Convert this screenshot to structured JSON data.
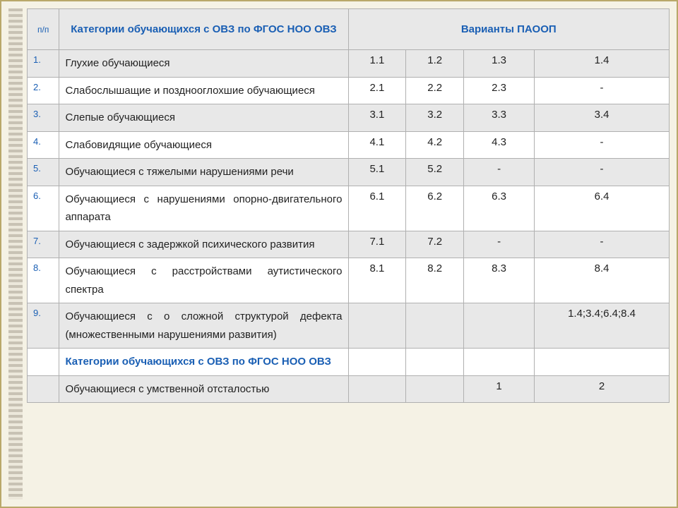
{
  "colors": {
    "page_bg": "#f5f2e5",
    "border": "#b9a86a",
    "cell_border": "#b0b0b0",
    "header_bg": "#e8e8e8",
    "shade_bg": "#e8e8e8",
    "header_text": "#1a5fb4",
    "num_text": "#1a5fb4",
    "body_text": "#222222"
  },
  "fonts": {
    "body_family": "Arial",
    "header_size_pt": 15,
    "body_size_pt": 15,
    "num_size_pt": 13
  },
  "layout": {
    "col_widths_pct": [
      5,
      45,
      9,
      9,
      11,
      21
    ]
  },
  "headers": {
    "num": "п/п",
    "category": "Категории обучающихся с ОВЗ по ФГОС НОО ОВЗ",
    "variants": "Варианты ПАООП"
  },
  "rows": [
    {
      "num": "1.",
      "category": "Глухие обучающиеся",
      "v1": "1.1",
      "v2": "1.2",
      "v3": "1.3",
      "v4": "1.4",
      "shade": true
    },
    {
      "num": "2.",
      "category": "Слабослышащие и позднооглохшие обучающиеся",
      "v1": "2.1",
      "v2": "2.2",
      "v3": "2.3",
      "v4": "-",
      "shade": false
    },
    {
      "num": "3.",
      "category": "Слепые обучающиеся",
      "v1": "3.1",
      "v2": "3.2",
      "v3": "3.3",
      "v4": "3.4",
      "shade": true
    },
    {
      "num": "4.",
      "category": "Слабовидящие обучающиеся",
      "v1": "4.1",
      "v2": "4.2",
      "v3": "4.3",
      "v4": "-",
      "shade": false
    },
    {
      "num": "5.",
      "category": "Обучающиеся с тяжелыми нарушениями речи",
      "v1": "5.1",
      "v2": "5.2",
      "v3": "-",
      "v4": "-",
      "shade": true
    },
    {
      "num": "6.",
      "category": "Обучающиеся с нарушениями опорно-двигательного аппарата",
      "v1": "6.1",
      "v2": "6.2",
      "v3": "6.3",
      "v4": "6.4",
      "shade": false
    },
    {
      "num": "7.",
      "category": "Обучающиеся с задержкой психического развития",
      "v1": "7.1",
      "v2": "7.2",
      "v3": "-",
      "v4": "-",
      "shade": true
    },
    {
      "num": "8.",
      "category": "Обучающиеся с расстройствами аутистического спектра",
      "v1": "8.1",
      "v2": "8.2",
      "v3": "8.3",
      "v4": "8.4",
      "shade": false
    },
    {
      "num": "9.",
      "category": "Обучающиеся с о сложной структурой дефекта (множественными нарушениями развития)",
      "v1": "",
      "v2": "",
      "v3": "",
      "v4": "1.4;3.4;6.4;8.4",
      "shade": true
    },
    {
      "num": "",
      "category": "Категории обучающихся с ОВЗ по ФГОС НОО ОВЗ",
      "v1": "",
      "v2": "",
      "v3": "",
      "v4": "",
      "shade": false,
      "highlight": true
    },
    {
      "num": "",
      "category": "Обучающиеся с умственной отсталостью",
      "v1": "",
      "v2": "",
      "v3": "1",
      "v4": "2",
      "shade": true
    }
  ]
}
